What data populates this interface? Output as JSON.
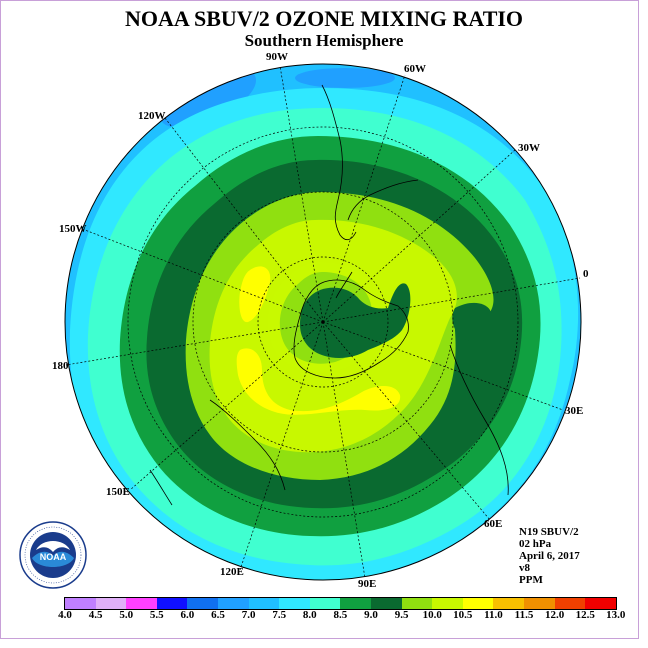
{
  "title": "NOAA SBUV/2 OZONE MIXING RATIO",
  "subtitle": "Southern Hemisphere",
  "longitude_labels": [
    "90W",
    "60W",
    "30W",
    "0",
    "30E",
    "60E",
    "90E",
    "120E",
    "150E",
    "180",
    "150W",
    "120W"
  ],
  "info": {
    "satellite": "N19 SBUV/2",
    "level": "02 hPa",
    "date": "April 6, 2017",
    "version": "v8",
    "units": "PPM"
  },
  "colorbar": {
    "ticks": [
      "4.0",
      "4.5",
      "5.0",
      "5.5",
      "6.0",
      "6.5",
      "7.0",
      "7.5",
      "8.0",
      "8.5",
      "9.0",
      "9.5",
      "10.0",
      "10.5",
      "11.0",
      "11.5",
      "12.0",
      "12.5",
      "13.0"
    ],
    "colors": [
      "#c080ff",
      "#e0b0f8",
      "#ff40ff",
      "#1010ff",
      "#1070f0",
      "#20a0ff",
      "#20c0ff",
      "#30e8ff",
      "#40ffd0",
      "#10a040",
      "#0a6a30",
      "#90e010",
      "#c8f800",
      "#ffff00",
      "#f8c000",
      "#f09000",
      "#f04000",
      "#f00000",
      "#905838"
    ]
  },
  "logo": {
    "text": "NOAA",
    "ring_text": "NATIONAL OCEANIC AND ATMOSPHERIC ADMINISTRATION · U.S. DEPARTMENT OF COMMERCE"
  },
  "colors": {
    "band_7_0": "#20c0ff",
    "band_7_5": "#30e8ff",
    "band_8_0": "#40ffd0",
    "band_8_5": "#10a040",
    "band_9_0": "#0a6a30",
    "band_9_5": "#90e010",
    "band_10_0": "#c8f800",
    "band_10_5": "#ffff00",
    "band_6_5": "#20a0ff"
  }
}
